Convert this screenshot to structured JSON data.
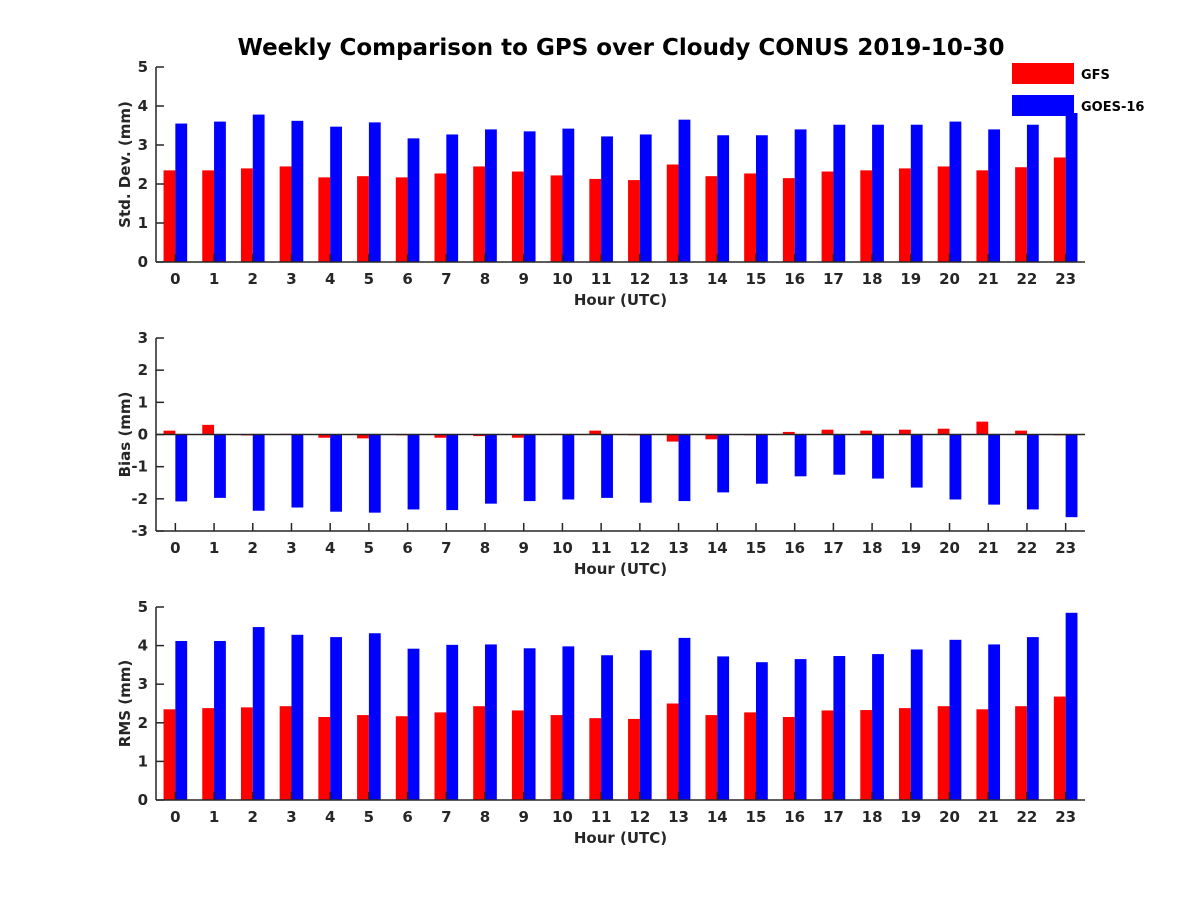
{
  "title": "Weekly Comparison to GPS over Cloudy CONUS 2019-10-30",
  "legend": {
    "items": [
      {
        "name": "GFS",
        "color": "#ff0000"
      },
      {
        "name": "GOES-16",
        "color": "#0000ff"
      }
    ],
    "placement": "top-right"
  },
  "chart_data": [
    {
      "type": "bar",
      "ylabel": "Std. Dev. (mm)",
      "xlabel": "Hour (UTC)",
      "ylim": [
        0,
        5
      ],
      "yticks": [
        "0",
        "1",
        "2",
        "3",
        "4",
        "5"
      ],
      "categories": [
        "0",
        "1",
        "2",
        "3",
        "4",
        "5",
        "6",
        "7",
        "8",
        "9",
        "10",
        "11",
        "12",
        "13",
        "14",
        "15",
        "16",
        "17",
        "18",
        "19",
        "20",
        "21",
        "22",
        "23"
      ],
      "series": [
        {
          "name": "GFS",
          "color": "#ff0000",
          "values": [
            2.35,
            2.35,
            2.4,
            2.45,
            2.17,
            2.2,
            2.17,
            2.27,
            2.45,
            2.32,
            2.22,
            2.13,
            2.1,
            2.5,
            2.2,
            2.27,
            2.15,
            2.32,
            2.35,
            2.4,
            2.45,
            2.35,
            2.43,
            2.68
          ]
        },
        {
          "name": "GOES-16",
          "color": "#0000ff",
          "values": [
            3.55,
            3.6,
            3.78,
            3.62,
            3.47,
            3.58,
            3.17,
            3.27,
            3.4,
            3.35,
            3.42,
            3.22,
            3.27,
            3.65,
            3.25,
            3.25,
            3.4,
            3.52,
            3.52,
            3.52,
            3.6,
            3.4,
            3.52,
            3.82
          ]
        }
      ],
      "grid": false
    },
    {
      "type": "bar",
      "ylabel": "Bias (mm)",
      "xlabel": "Hour (UTC)",
      "ylim": [
        -3,
        3
      ],
      "yticks": [
        "-3",
        "-2",
        "-1",
        "0",
        "1",
        "2",
        "3"
      ],
      "categories": [
        "0",
        "1",
        "2",
        "3",
        "4",
        "5",
        "6",
        "7",
        "8",
        "9",
        "10",
        "11",
        "12",
        "13",
        "14",
        "15",
        "16",
        "17",
        "18",
        "19",
        "20",
        "21",
        "22",
        "23"
      ],
      "series": [
        {
          "name": "GFS",
          "color": "#ff0000",
          "values": [
            0.12,
            0.3,
            -0.03,
            0.02,
            -0.1,
            -0.12,
            -0.02,
            -0.1,
            -0.05,
            -0.1,
            0.02,
            0.12,
            -0.02,
            -0.22,
            -0.15,
            0.0,
            0.08,
            0.15,
            0.12,
            0.15,
            0.18,
            0.4,
            0.12,
            0.0
          ]
        },
        {
          "name": "GOES-16",
          "color": "#0000ff",
          "values": [
            -2.08,
            -1.97,
            -2.37,
            -2.27,
            -2.4,
            -2.43,
            -2.33,
            -2.35,
            -2.15,
            -2.07,
            -2.02,
            -1.97,
            -2.12,
            -2.07,
            -1.8,
            -1.53,
            -1.3,
            -1.25,
            -1.37,
            -1.65,
            -2.02,
            -2.18,
            -2.33,
            -2.57
          ]
        }
      ],
      "grid": false
    },
    {
      "type": "bar",
      "ylabel": "RMS (mm)",
      "xlabel": "Hour (UTC)",
      "ylim": [
        0,
        5
      ],
      "yticks": [
        "0",
        "1",
        "2",
        "3",
        "4",
        "5"
      ],
      "categories": [
        "0",
        "1",
        "2",
        "3",
        "4",
        "5",
        "6",
        "7",
        "8",
        "9",
        "10",
        "11",
        "12",
        "13",
        "14",
        "15",
        "16",
        "17",
        "18",
        "19",
        "20",
        "21",
        "22",
        "23"
      ],
      "series": [
        {
          "name": "GFS",
          "color": "#ff0000",
          "values": [
            2.35,
            2.38,
            2.4,
            2.43,
            2.15,
            2.2,
            2.17,
            2.27,
            2.43,
            2.32,
            2.2,
            2.12,
            2.1,
            2.5,
            2.2,
            2.27,
            2.15,
            2.32,
            2.33,
            2.38,
            2.43,
            2.35,
            2.43,
            2.68
          ]
        },
        {
          "name": "GOES-16",
          "color": "#0000ff",
          "values": [
            4.12,
            4.12,
            4.48,
            4.28,
            4.22,
            4.32,
            3.92,
            4.02,
            4.03,
            3.93,
            3.98,
            3.75,
            3.88,
            4.2,
            3.72,
            3.57,
            3.65,
            3.73,
            3.78,
            3.9,
            4.15,
            4.03,
            4.22,
            4.85
          ]
        }
      ],
      "grid": false
    }
  ]
}
